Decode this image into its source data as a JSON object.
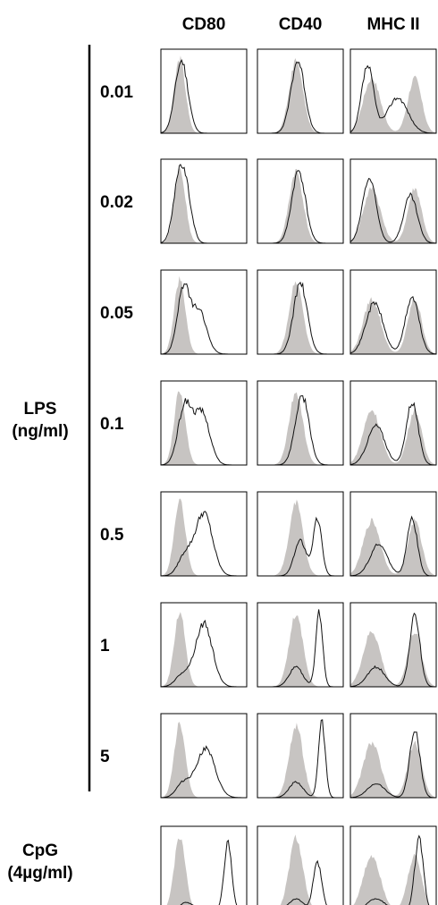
{
  "chart_data": {
    "type": "area",
    "columns": [
      "CD80",
      "CD40",
      "MHC II"
    ],
    "groups": [
      {
        "label": [
          "LPS",
          "(ng/ml)"
        ],
        "rows": [
          "0.01",
          "0.02",
          "0.05",
          "0.1",
          "0.5",
          "1",
          "5"
        ]
      },
      {
        "label": [
          "CpG",
          "(4µg/ml)"
        ],
        "rows": [
          ""
        ]
      }
    ],
    "series": [
      {
        "style": "filled-grey"
      },
      {
        "style": "black-outline"
      }
    ],
    "histograms": {
      "CD80": {
        "control": [
          [
            0.22,
            0.065,
            0.95
          ]
        ],
        "treated": [
          [
            [
              0.24,
              0.075,
              0.92
            ]
          ],
          [
            [
              0.22,
              0.07,
              0.9
            ],
            [
              0.32,
              0.06,
              0.35
            ]
          ],
          [
            [
              0.26,
              0.07,
              0.8
            ],
            [
              0.44,
              0.09,
              0.55
            ]
          ],
          [
            [
              0.28,
              0.08,
              0.75
            ],
            [
              0.48,
              0.09,
              0.65
            ]
          ],
          [
            [
              0.28,
              0.08,
              0.25
            ],
            [
              0.5,
              0.1,
              0.8
            ]
          ],
          [
            [
              0.25,
              0.08,
              0.15
            ],
            [
              0.5,
              0.1,
              0.8
            ]
          ],
          [
            [
              0.26,
              0.08,
              0.18
            ],
            [
              0.52,
              0.11,
              0.62
            ]
          ],
          [
            [
              0.3,
              0.08,
              0.1
            ],
            [
              0.78,
              0.045,
              0.85
            ]
          ]
        ]
      },
      "CD40": {
        "control": [
          [
            0.45,
            0.08,
            0.92
          ]
        ],
        "treated": [
          [
            [
              0.47,
              0.08,
              0.92
            ]
          ],
          [
            [
              0.48,
              0.08,
              0.92
            ]
          ],
          [
            [
              0.5,
              0.08,
              0.9
            ]
          ],
          [
            [
              0.52,
              0.08,
              0.88
            ]
          ],
          [
            [
              0.5,
              0.07,
              0.45
            ],
            [
              0.7,
              0.05,
              0.72
            ]
          ],
          [
            [
              0.45,
              0.08,
              0.25
            ],
            [
              0.72,
              0.04,
              0.95
            ]
          ],
          [
            [
              0.45,
              0.08,
              0.2
            ],
            [
              0.75,
              0.04,
              0.95
            ]
          ],
          [
            [
              0.45,
              0.08,
              0.15
            ],
            [
              0.7,
              0.05,
              0.6
            ]
          ]
        ]
      },
      "MHC II": {
        "control": [
          [
            0.25,
            0.1,
            0.7
          ],
          [
            0.75,
            0.08,
            0.7
          ]
        ],
        "treated": [
          [
            [
              0.2,
              0.07,
              0.85
            ],
            [
              0.55,
              0.12,
              0.45
            ]
          ],
          [
            [
              0.22,
              0.08,
              0.82
            ],
            [
              0.7,
              0.08,
              0.6
            ]
          ],
          [
            [
              0.28,
              0.1,
              0.65
            ],
            [
              0.72,
              0.08,
              0.72
            ]
          ],
          [
            [
              0.3,
              0.1,
              0.5
            ],
            [
              0.72,
              0.07,
              0.8
            ]
          ],
          [
            [
              0.33,
              0.1,
              0.4
            ],
            [
              0.72,
              0.06,
              0.72
            ]
          ],
          [
            [
              0.3,
              0.1,
              0.25
            ],
            [
              0.75,
              0.06,
              0.9
            ]
          ],
          [
            [
              0.3,
              0.1,
              0.18
            ],
            [
              0.75,
              0.06,
              0.85
            ]
          ],
          [
            [
              0.3,
              0.1,
              0.15
            ],
            [
              0.8,
              0.05,
              0.9
            ]
          ]
        ]
      }
    },
    "colors": {
      "control_fill": "#c7c4c2",
      "treated_line": "#111111"
    }
  }
}
